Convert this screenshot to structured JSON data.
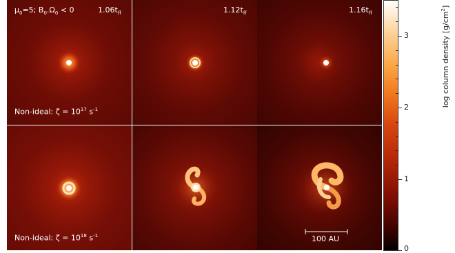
{
  "figure": {
    "header_model": "μ",
    "header_model_sub": "0",
    "header_model_rest": "=5; B",
    "header_b_sub": "0",
    "header_omega": ".Ω",
    "header_omega_sub": "0",
    "header_sign": " < 0",
    "times": [
      {
        "value": "1.06t",
        "sub": "ff"
      },
      {
        "value": "1.12t",
        "sub": "ff"
      },
      {
        "value": "1.16t",
        "sub": "ff"
      }
    ],
    "rows": [
      {
        "label": "Non-ideal: ζ = 10",
        "exp": "17",
        "unit": " s",
        "unit_exp": "-1"
      },
      {
        "label": "Non-ideal: ζ = 10",
        "exp": "18",
        "unit": " s",
        "unit_exp": "-1"
      }
    ],
    "scale_bar": "100 AU",
    "colorbar": {
      "label": "log column density [g/cm",
      "label_exp": "2",
      "label_end": "]",
      "ticks": [
        "3",
        "2",
        "1",
        "0"
      ],
      "tick_values": [
        3,
        2,
        1,
        0
      ],
      "vmin": 0,
      "vmax": 3.5
    },
    "colors": {
      "panel_text": "#ffffff",
      "divider": "#d9d9d9"
    }
  }
}
